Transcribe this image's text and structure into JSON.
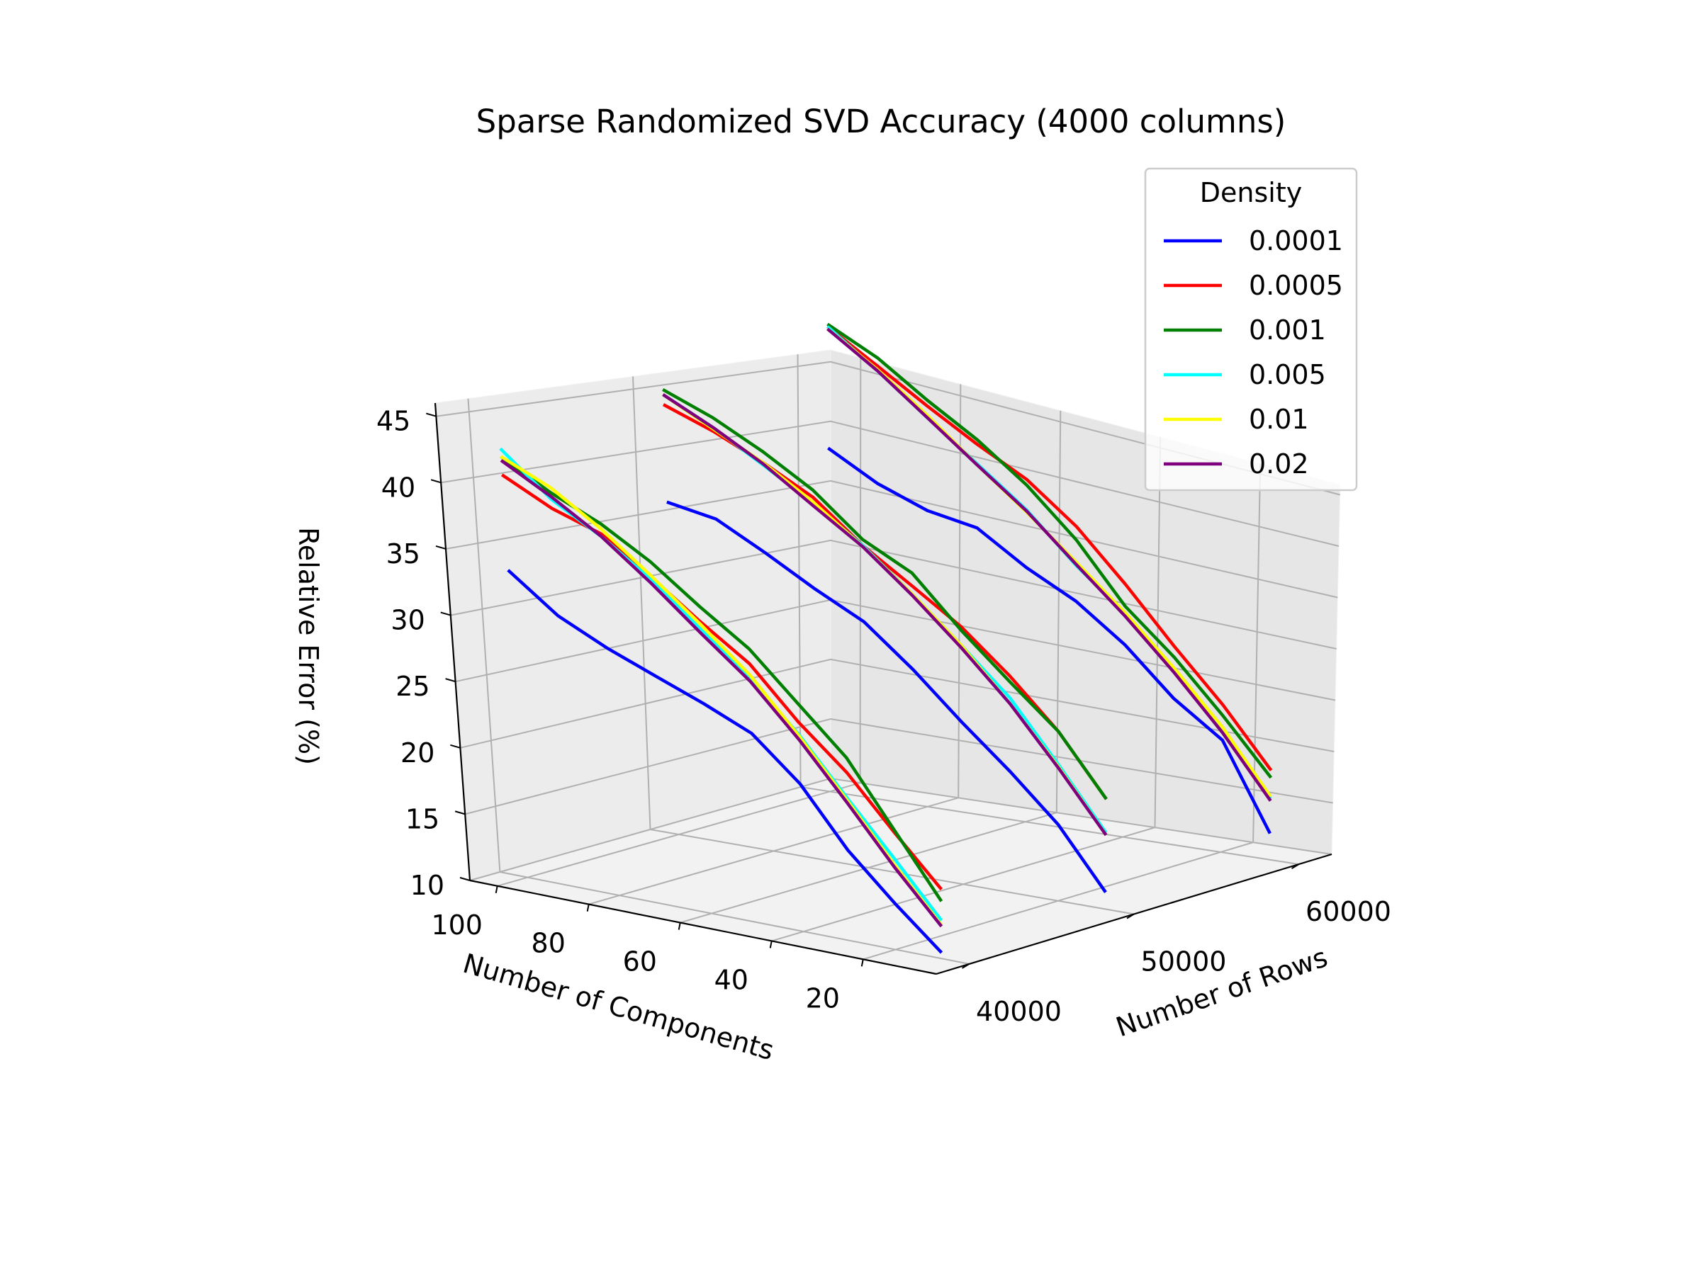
{
  "chart_data": {
    "type": "line3d",
    "title": "Sparse Randomized SVD Accuracy (4000 columns)",
    "xlabel": "Number of Components",
    "ylabel": "Number of Rows",
    "zlabel": "Relative Error (%)",
    "xlim": [
      4,
      106
    ],
    "ylim": [
      38000,
      62000
    ],
    "zlim": [
      10,
      46
    ],
    "xticks": [
      20,
      40,
      60,
      80,
      100
    ],
    "yticks": [
      40000,
      50000,
      60000
    ],
    "zticks": [
      10,
      15,
      20,
      25,
      30,
      35,
      40,
      45
    ],
    "grid": true,
    "legend": {
      "title": "Density",
      "position": "top-right"
    },
    "components": [
      10,
      20,
      30,
      40,
      50,
      60,
      70,
      80,
      90,
      100
    ],
    "rows": [
      40000,
      50000,
      60000
    ],
    "series": [
      {
        "name": "0.0001",
        "color": "#0000ff",
        "surfaces": [
          {
            "rows": 40000,
            "values": [
              10.5,
              13.8,
              17.4,
              22.0,
              25.2,
              26.7,
              28.0,
              29.3,
              30.9,
              33.5
            ]
          },
          {
            "rows": 50000,
            "values": [
              11.5,
              16.7,
              20.5,
              23.9,
              27.5,
              30.6,
              32.4,
              34.4,
              36.2,
              36.6
            ]
          },
          {
            "rows": 60000,
            "values": [
              12.5,
              20.5,
              23.5,
              27.5,
              30.5,
              32.5,
              35.0,
              35.5,
              36.8,
              38.8
            ]
          }
        ]
      },
      {
        "name": "0.0005",
        "color": "#ff0000",
        "surfaces": [
          {
            "rows": 40000,
            "values": [
              15.8,
              19.7,
              23.8,
              27.0,
              30.8,
              33.2,
              35.8,
              38.2,
              39.2,
              40.8
            ]
          },
          {
            "rows": 50000,
            "values": [
              19.8,
              24.9,
              28.8,
              32.1,
              34.6,
              37.0,
              40.0,
              41.8,
              43.3,
              44.4
            ]
          },
          {
            "rows": 60000,
            "values": [
              18.5,
              23.8,
              28.3,
              33.0,
              37.2,
              40.3,
              42.3,
              44.5,
              46.8,
              49.0
            ]
          }
        ]
      },
      {
        "name": "0.001",
        "color": "#007f00",
        "surfaces": [
          {
            "rows": 40000,
            "values": [
              14.8,
              19.9,
              25.0,
              28.5,
              32.0,
              34.4,
              37.0,
              39.0,
              40.4,
              42.2
            ]
          },
          {
            "rows": 50000,
            "values": [
              19.8,
              24.9,
              28.3,
              31.8,
              35.7,
              37.5,
              40.6,
              42.7,
              44.4,
              45.6
            ]
          },
          {
            "rows": 60000,
            "values": [
              17.8,
              22.8,
              27.3,
              31.0,
              36.0,
              39.8,
              42.7,
              45.0,
              47.5,
              49.2
            ]
          }
        ]
      },
      {
        "name": "0.005",
        "color": "#00ffff",
        "surfaces": [
          {
            "rows": 40000,
            "values": [
              13.2,
              17.5,
              21.7,
              26.0,
              29.6,
              32.6,
              35.6,
              38.0,
              39.9,
              42.8
            ]
          },
          {
            "rows": 50000,
            "values": [
              16.8,
              22.0,
              26.9,
              30.5,
              33.9,
              37.0,
              39.5,
              41.6,
              43.6,
              45.2
            ]
          },
          {
            "rows": 60000,
            "values": [
              15.8,
              21.2,
              26.0,
              30.3,
              33.7,
              37.6,
              40.6,
              43.5,
              46.4,
              49.0
            ]
          }
        ]
      },
      {
        "name": "0.01",
        "color": "#ffff00",
        "surfaces": [
          {
            "rows": 40000,
            "values": [
              12.8,
              17.0,
              21.5,
              25.9,
              29.9,
              33.0,
              35.9,
              38.6,
              40.8,
              42.2
            ]
          },
          {
            "rows": 50000,
            "values": [
              16.6,
              21.8,
              26.4,
              30.5,
              33.9,
              36.9,
              39.6,
              41.8,
              43.5,
              45.2
            ]
          },
          {
            "rows": 60000,
            "values": [
              16.0,
              21.7,
              26.3,
              30.4,
              34.0,
              37.4,
              40.5,
              43.7,
              46.5,
              48.8
            ]
          }
        ]
      },
      {
        "name": "0.02",
        "color": "#7f007f",
        "surfaces": [
          {
            "rows": 40000,
            "values": [
              12.7,
              16.8,
              21.3,
              25.6,
              29.4,
              32.3,
              35.3,
              38.0,
              40.1,
              41.9
            ]
          },
          {
            "rows": 50000,
            "values": [
              16.6,
              21.7,
              26.4,
              30.3,
              33.8,
              36.9,
              39.3,
              41.7,
              43.6,
              45.2
            ]
          },
          {
            "rows": 60000,
            "values": [
              15.6,
              21.2,
              25.9,
              30.1,
              33.8,
              37.5,
              40.5,
              43.5,
              46.4,
              48.8
            ]
          }
        ]
      }
    ]
  }
}
